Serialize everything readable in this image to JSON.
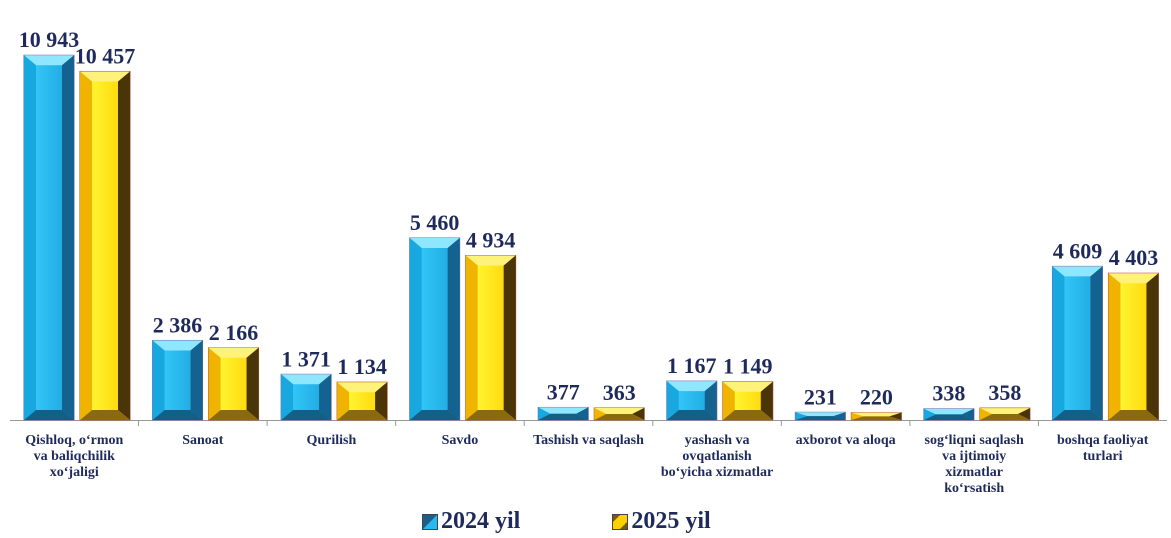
{
  "chart_data": {
    "type": "bar",
    "categories": [
      [
        "Qishloq, o‘rmon",
        "va baliqchilik",
        "xo‘jaligi"
      ],
      [
        "Sanoat"
      ],
      [
        "Qurilish"
      ],
      [
        "Savdo"
      ],
      [
        "Tashish va saqlash"
      ],
      [
        "yashash va",
        "ovqatlanish",
        "bo‘yicha xizmatlar"
      ],
      [
        "axborot va aloqa"
      ],
      [
        "sog‘liqni saqlash",
        "va ijtimoiy",
        "xizmatlar",
        "ko‘rsatish"
      ],
      [
        "boshqa faoliyat",
        "turlari"
      ]
    ],
    "series": [
      {
        "name": "2024 yil",
        "values": [
          10943,
          2386,
          1371,
          5460,
          377,
          1167,
          231,
          338,
          4609
        ],
        "labels": [
          "10 943",
          "2 386",
          "1 371",
          "5 460",
          "377",
          "1 167",
          "231",
          "338",
          "4 609"
        ],
        "color": "#27b9ef"
      },
      {
        "name": "2025 yil",
        "values": [
          10457,
          2166,
          1134,
          4934,
          363,
          1149,
          220,
          358,
          4403
        ],
        "labels": [
          "10 457",
          "2 166",
          "1 134",
          "4 934",
          "363",
          "1 149",
          "220",
          "358",
          "4 403"
        ],
        "color": "#ffd000"
      }
    ],
    "ylim": [
      0,
      11000
    ],
    "grid": false,
    "legend_position": "bottom"
  },
  "legend": {
    "s1": "2024 yil",
    "s2": "2025 yil"
  }
}
